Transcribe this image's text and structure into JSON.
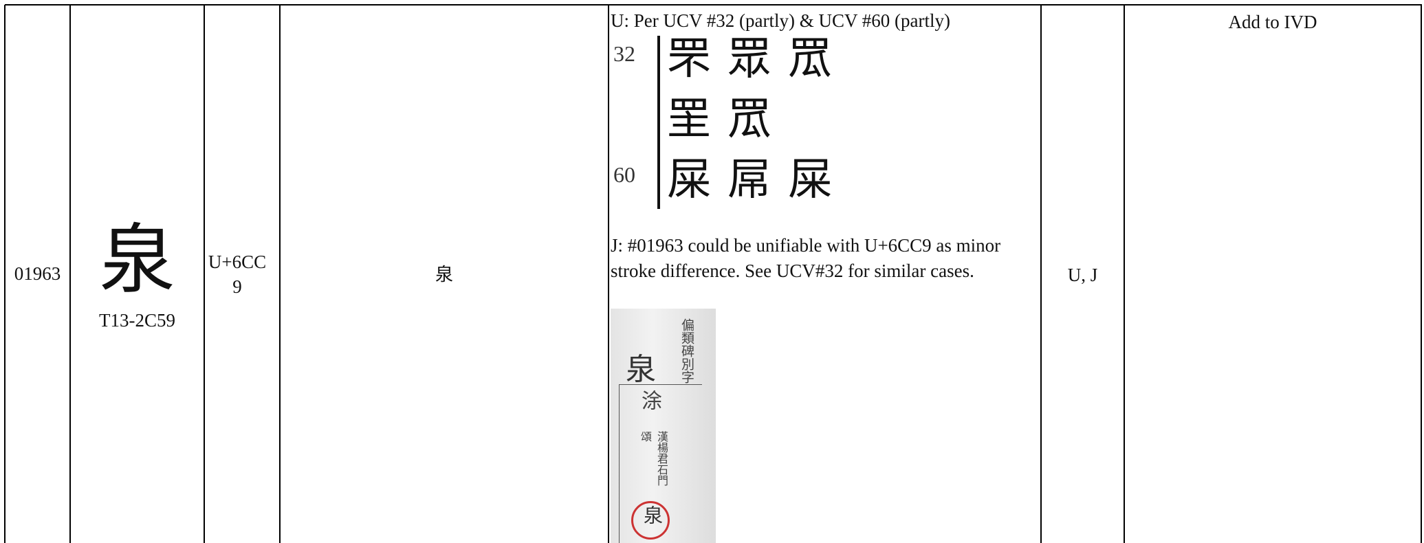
{
  "table": {
    "row": {
      "number": "01963",
      "glyph": "泉",
      "source_code": "T13-2C59",
      "codepoint": "U+6CC9",
      "unicode_char": "泉",
      "note_u": "U: Per UCV #32 (partly) & UCV #60 (partly)",
      "ucv_image": {
        "rows": [
          {
            "label": "32",
            "glyphs": [
              "罘",
              "眾",
              "罛"
            ]
          },
          {
            "glyphs": [
              "罜",
              "罛"
            ]
          },
          {
            "label": "60",
            "glyphs": [
              "屎",
              "屌",
              "屎"
            ]
          }
        ]
      },
      "note_j": "J: #01963 could be unifiable with U+6CC9 as minor stroke difference. See UCV#32 for similar cases.",
      "evidence_image": {
        "heading": "泉",
        "title": "偏類碑別字",
        "variant": "涂",
        "source": "漢楊君石門頌",
        "circled": "泉"
      },
      "flags": "U, J",
      "action": "Add to IVD"
    }
  }
}
